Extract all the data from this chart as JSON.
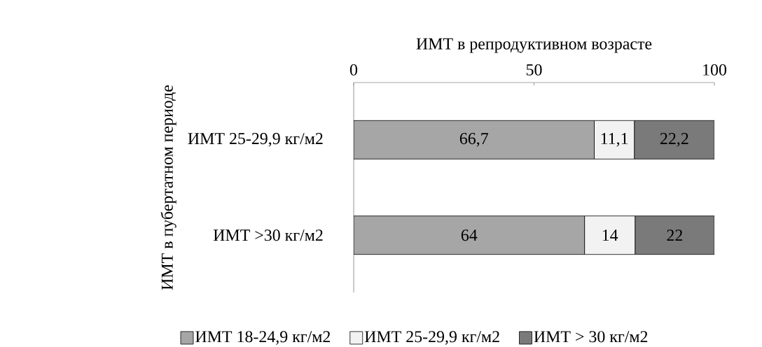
{
  "chart_data": {
    "type": "bar",
    "orientation": "horizontal",
    "stacked": true,
    "xlabel": "ИМТ в репродуктивном возрасте",
    "ylabel": "ИМТ в пубертатном  периоде",
    "categories": [
      "ИМТ 25-29,9 кг/м2",
      "ИМТ >30 кг/м2"
    ],
    "series": [
      {
        "name": "ИМТ 18-24,9 кг/м2",
        "color": "#a6a6a6",
        "values": [
          66.7,
          64
        ],
        "value_labels": [
          "66,7",
          "64"
        ]
      },
      {
        "name": "ИМТ 25-29,9 кг/м2",
        "color": "#f2f2f2",
        "values": [
          11.1,
          14
        ],
        "value_labels": [
          "11,1",
          "14"
        ]
      },
      {
        "name": "ИМТ > 30 кг/м2",
        "color": "#7a7a7a",
        "values": [
          22.2,
          22
        ],
        "value_labels": [
          "22,2",
          "22"
        ]
      }
    ],
    "xlim": [
      0,
      100
    ],
    "xticks": [
      0,
      50,
      100
    ],
    "legend": "bottom"
  }
}
